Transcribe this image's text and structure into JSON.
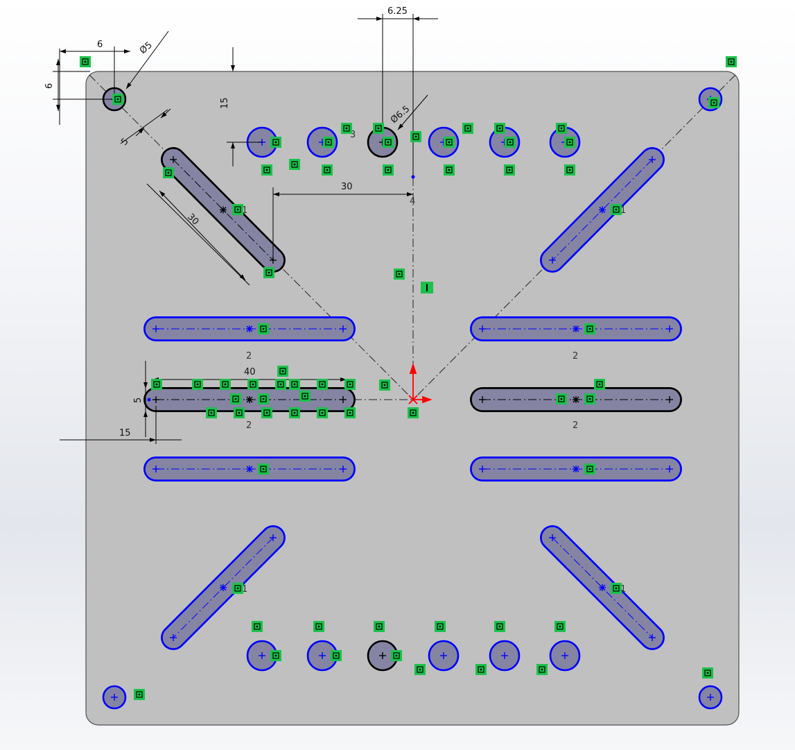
{
  "dimensions": {
    "top_hole_offset_x": "6",
    "top_hole_offset_y": "6",
    "top_hole_diameter": "Ø5",
    "spacing_6_25": "6.25",
    "big_hole_diameter": "Ø6.5",
    "row_offset_15": "15",
    "slot_width_5_diag": "5",
    "slot_length_30": "30",
    "horizontal_30": "30",
    "slot_length_40": "40",
    "slot_width_5": "5",
    "left_offset_15": "15"
  },
  "labels": {
    "pattern_count": "2",
    "mirror_mark": "4",
    "sym_1": "1",
    "sym_3": "3"
  },
  "colors": {
    "plate_fill": "#c0c0c0",
    "feature_fill": "#8585a3",
    "blue_outline": "#0000ff",
    "black_outline": "#000000",
    "relation_green": "#19c24a",
    "origin_red": "#ff0000"
  }
}
